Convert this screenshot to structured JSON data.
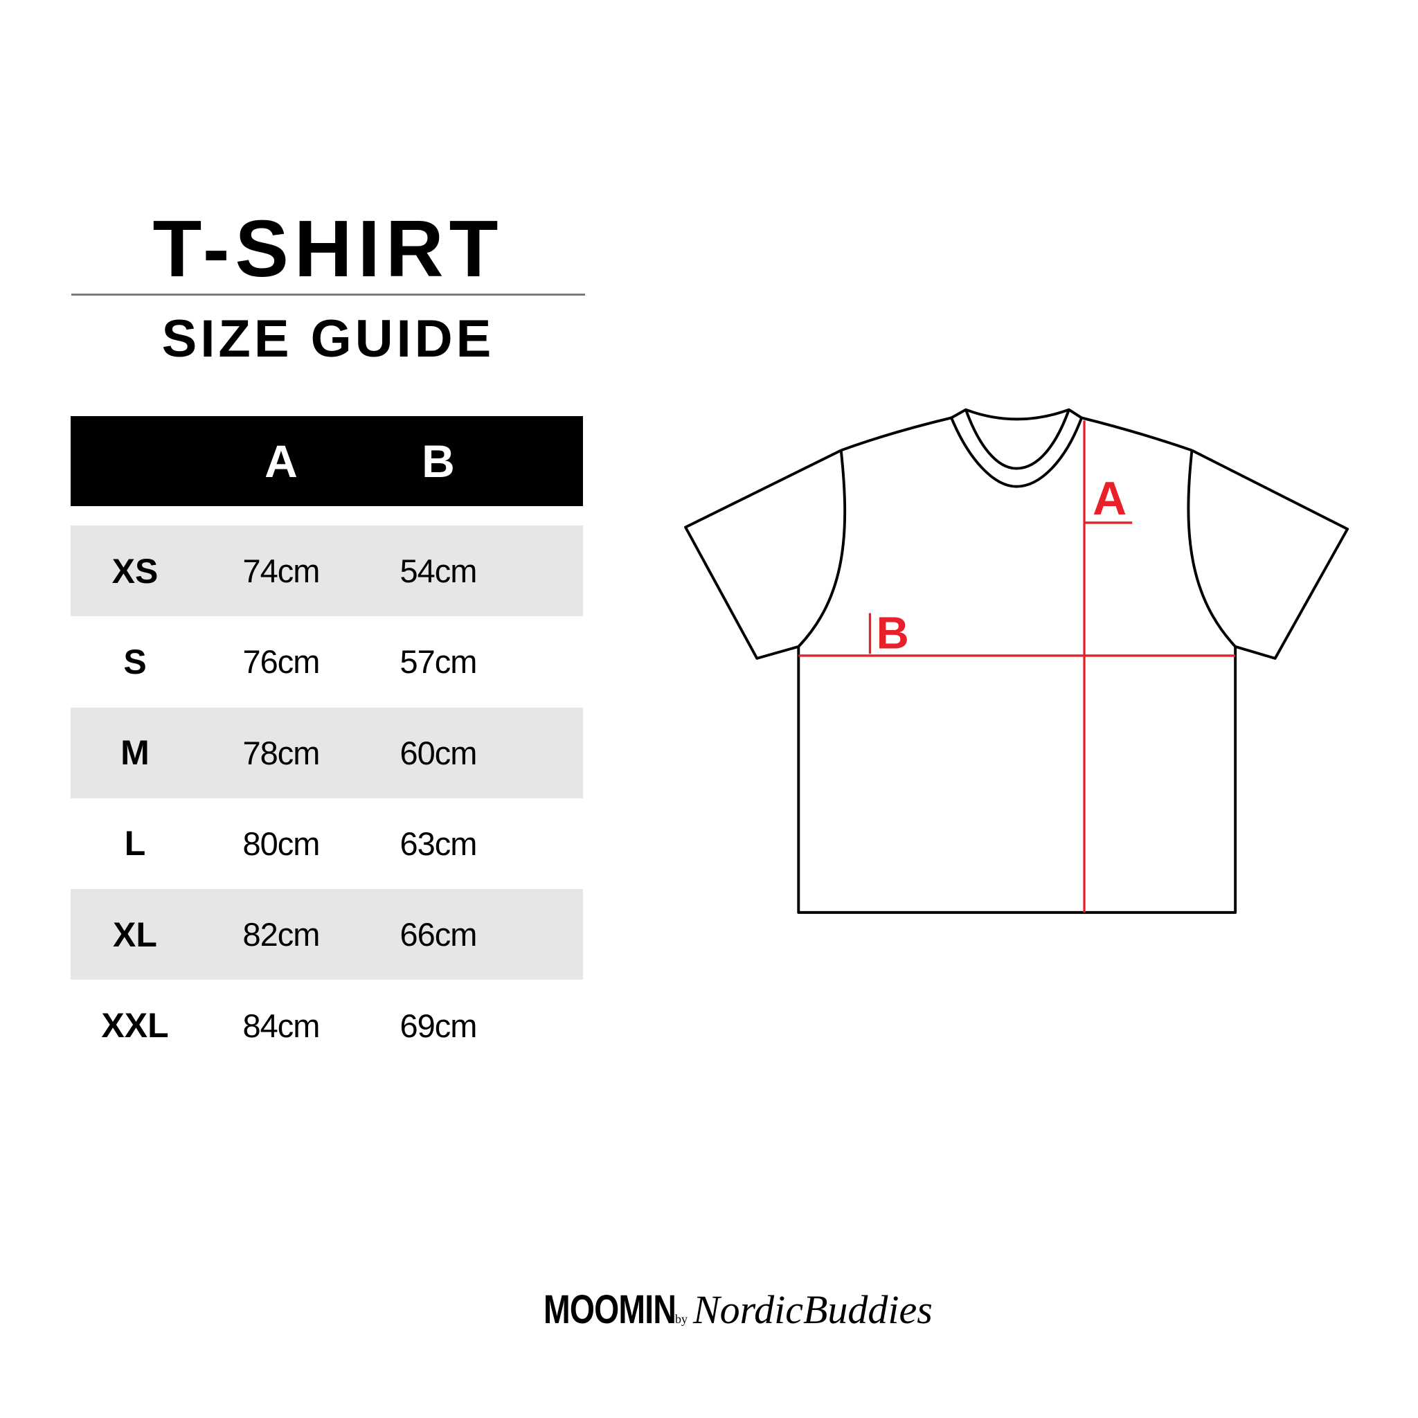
{
  "header": {
    "title": "T-SHIRT",
    "subtitle": "SIZE GUIDE"
  },
  "table": {
    "columns": [
      "",
      "A",
      "B"
    ],
    "rows": [
      {
        "size": "XS",
        "a": "74cm",
        "b": "54cm"
      },
      {
        "size": "S",
        "a": "76cm",
        "b": "57cm"
      },
      {
        "size": "M",
        "a": "78cm",
        "b": "60cm"
      },
      {
        "size": "L",
        "a": "80cm",
        "b": "63cm"
      },
      {
        "size": "XL",
        "a": "82cm",
        "b": "66cm"
      },
      {
        "size": "XXL",
        "a": "84cm",
        "b": "69cm"
      }
    ]
  },
  "diagram": {
    "label_a": "A",
    "label_b": "B",
    "measure_color": "#e8202a",
    "outline_color": "#000000"
  },
  "logo": {
    "brand": "MOOMIN",
    "by": "by",
    "partner": "NordicBuddies"
  },
  "colors": {
    "header_bg": "#000000",
    "row_alt_bg": "#e6e6e6",
    "rule": "#7a7a7a"
  }
}
